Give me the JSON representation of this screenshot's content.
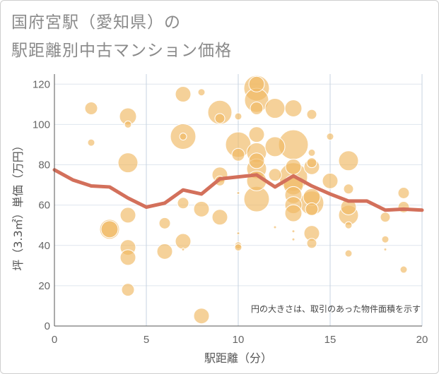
{
  "title": {
    "line1": "国府宮駅（愛知県）の",
    "line2": "駅距離別中古マンション価格"
  },
  "chart_data": {
    "type": "scatter",
    "xlabel": "駅距離（分）",
    "ylabel": "坪（3.3㎡）単価（万円）",
    "xlim": [
      0,
      20
    ],
    "ylim": [
      0,
      125
    ],
    "xticks": [
      0,
      5,
      10,
      15,
      20
    ],
    "yticks": [
      0,
      20,
      40,
      60,
      80,
      100,
      120
    ],
    "grid": true,
    "note": "円の大きさは、取引のあった物件面積を示す",
    "colors": {
      "bubble": "#f0b962",
      "line": "#d3705b"
    },
    "bubbles": [
      {
        "x": 2,
        "y": 108,
        "s": 9
      },
      {
        "x": 2,
        "y": 91,
        "s": 5
      },
      {
        "x": 3,
        "y": 48,
        "s": 14
      },
      {
        "x": 3,
        "y": 48,
        "s": 12
      },
      {
        "x": 4,
        "y": 104,
        "s": 12
      },
      {
        "x": 4,
        "y": 100,
        "s": 5
      },
      {
        "x": 4,
        "y": 81,
        "s": 14
      },
      {
        "x": 4,
        "y": 55,
        "s": 11
      },
      {
        "x": 4,
        "y": 39,
        "s": 11
      },
      {
        "x": 4,
        "y": 34,
        "s": 11
      },
      {
        "x": 4,
        "y": 18,
        "s": 9
      },
      {
        "x": 6,
        "y": 51,
        "s": 8
      },
      {
        "x": 6,
        "y": 37,
        "s": 11
      },
      {
        "x": 7,
        "y": 115,
        "s": 11
      },
      {
        "x": 7,
        "y": 94,
        "s": 18
      },
      {
        "x": 7,
        "y": 94,
        "s": 5
      },
      {
        "x": 7,
        "y": 61,
        "s": 8
      },
      {
        "x": 7,
        "y": 42,
        "s": 11
      },
      {
        "x": 7,
        "y": 38,
        "s": 2
      },
      {
        "x": 8,
        "y": 116,
        "s": 5
      },
      {
        "x": 8,
        "y": 58,
        "s": 11
      },
      {
        "x": 8,
        "y": 5,
        "s": 11
      },
      {
        "x": 9,
        "y": 106,
        "s": 17
      },
      {
        "x": 9,
        "y": 103,
        "s": 7
      },
      {
        "x": 9,
        "y": 75,
        "s": 11
      },
      {
        "x": 9,
        "y": 72,
        "s": 7
      },
      {
        "x": 9,
        "y": 54,
        "s": 11
      },
      {
        "x": 10,
        "y": 104,
        "s": 5
      },
      {
        "x": 10,
        "y": 90,
        "s": 18
      },
      {
        "x": 10,
        "y": 85,
        "s": 9
      },
      {
        "x": 10,
        "y": 66,
        "s": 2
      },
      {
        "x": 10,
        "y": 46,
        "s": 2
      },
      {
        "x": 10,
        "y": 40,
        "s": 5
      },
      {
        "x": 10,
        "y": 39,
        "s": 5
      },
      {
        "x": 11,
        "y": 120,
        "s": 11
      },
      {
        "x": 11,
        "y": 118,
        "s": 18
      },
      {
        "x": 11,
        "y": 112,
        "s": 17
      },
      {
        "x": 11,
        "y": 108,
        "s": 9
      },
      {
        "x": 11,
        "y": 95,
        "s": 11
      },
      {
        "x": 11,
        "y": 86,
        "s": 14
      },
      {
        "x": 11,
        "y": 82,
        "s": 11
      },
      {
        "x": 11,
        "y": 78,
        "s": 14
      },
      {
        "x": 11,
        "y": 72,
        "s": 14
      },
      {
        "x": 11,
        "y": 63,
        "s": 18
      },
      {
        "x": 12,
        "y": 108,
        "s": 14
      },
      {
        "x": 12,
        "y": 89,
        "s": 14
      },
      {
        "x": 12,
        "y": 75,
        "s": 9
      },
      {
        "x": 12,
        "y": 49,
        "s": 2
      },
      {
        "x": 13,
        "y": 108,
        "s": 12
      },
      {
        "x": 13,
        "y": 90,
        "s": 21
      },
      {
        "x": 13,
        "y": 79,
        "s": 11
      },
      {
        "x": 13,
        "y": 74,
        "s": 20
      },
      {
        "x": 13,
        "y": 70,
        "s": 14
      },
      {
        "x": 13,
        "y": 65,
        "s": 12
      },
      {
        "x": 13,
        "y": 60,
        "s": 12
      },
      {
        "x": 13,
        "y": 56,
        "s": 12
      },
      {
        "x": 13,
        "y": 47,
        "s": 2
      },
      {
        "x": 13,
        "y": 43,
        "s": 2
      },
      {
        "x": 14,
        "y": 105,
        "s": 7
      },
      {
        "x": 14,
        "y": 86,
        "s": 5
      },
      {
        "x": 14,
        "y": 81,
        "s": 7
      },
      {
        "x": 14,
        "y": 79,
        "s": 11
      },
      {
        "x": 14,
        "y": 64,
        "s": 12
      },
      {
        "x": 14,
        "y": 61,
        "s": 17
      },
      {
        "x": 14,
        "y": 58,
        "s": 9
      },
      {
        "x": 14,
        "y": 46,
        "s": 11
      },
      {
        "x": 14,
        "y": 41,
        "s": 7
      },
      {
        "x": 15,
        "y": 94,
        "s": 5
      },
      {
        "x": 15,
        "y": 72,
        "s": 11
      },
      {
        "x": 16,
        "y": 82,
        "s": 14
      },
      {
        "x": 16,
        "y": 68,
        "s": 7
      },
      {
        "x": 16,
        "y": 59,
        "s": 11
      },
      {
        "x": 16,
        "y": 55,
        "s": 14
      },
      {
        "x": 16,
        "y": 50,
        "s": 5
      },
      {
        "x": 16,
        "y": 36,
        "s": 5
      },
      {
        "x": 18,
        "y": 54,
        "s": 7
      },
      {
        "x": 18,
        "y": 43,
        "s": 5
      },
      {
        "x": 18,
        "y": 38,
        "s": 2
      },
      {
        "x": 19,
        "y": 66,
        "s": 8
      },
      {
        "x": 19,
        "y": 59,
        "s": 8
      },
      {
        "x": 19,
        "y": 28,
        "s": 5
      }
    ],
    "line": {
      "x": [
        0,
        1,
        2,
        3,
        4,
        5,
        6,
        7,
        8,
        9,
        10,
        11,
        12,
        13,
        14,
        15,
        16,
        17,
        18,
        19,
        20
      ],
      "y": [
        77.5,
        72.5,
        69.5,
        69,
        63.5,
        59,
        61,
        67.5,
        65.5,
        73,
        74,
        75,
        69,
        74.5,
        69.5,
        65.5,
        62,
        62,
        57.5,
        58,
        57.5
      ]
    }
  }
}
